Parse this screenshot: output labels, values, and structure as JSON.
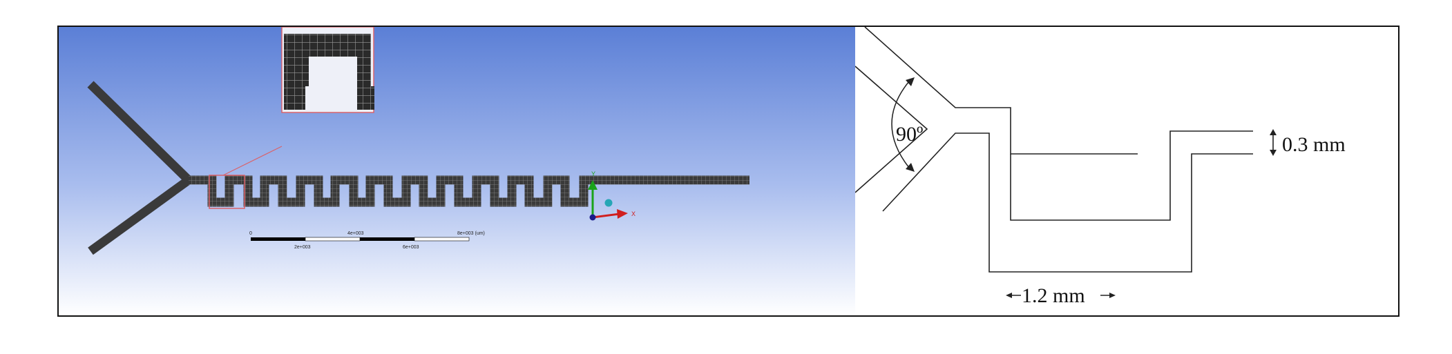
{
  "simulation_view": {
    "background_top": "#5b7fd6",
    "background_bottom": "#ffffff",
    "mesh_color": "#2e2e2e",
    "zoom_box_color": "#d9636b",
    "triad": {
      "y_label": "Y",
      "x_label": "X",
      "y_color": "#1aa31a",
      "x_color": "#d01f1f",
      "z_color": "#26a6b5"
    },
    "scale_bar": {
      "top_labels": [
        "0",
        "4e+003",
        "8e+003 (um)"
      ],
      "bottom_labels": [
        "2e+003",
        "6e+003"
      ]
    }
  },
  "schematic": {
    "angle_label": "90º",
    "width_label": "0.3 mm",
    "length_label": "1.2 mm"
  }
}
